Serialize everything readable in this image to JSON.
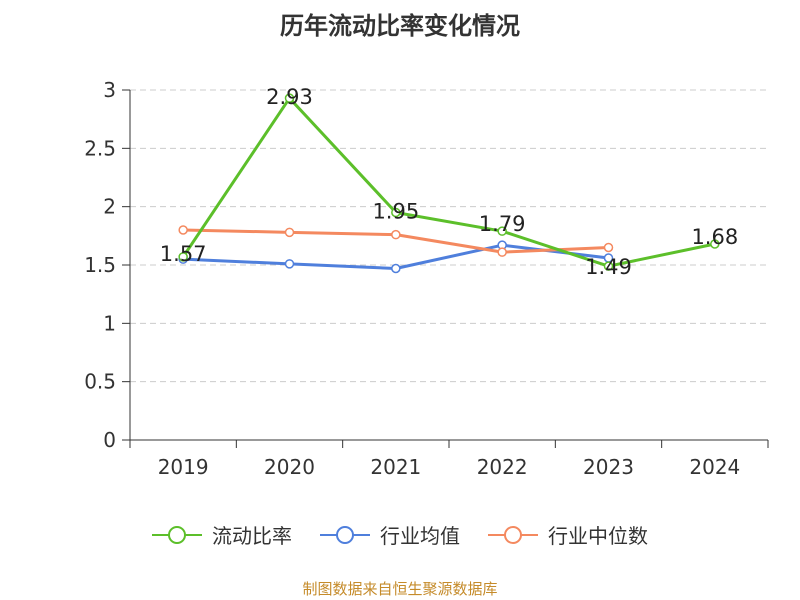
{
  "chart_data": {
    "type": "line",
    "title": "历年流动比率变化情况",
    "categories": [
      "2019",
      "2020",
      "2021",
      "2022",
      "2023",
      "2024"
    ],
    "ylim": [
      0,
      3
    ],
    "yticks": [
      "0",
      "0.5",
      "1",
      "1.5",
      "2",
      "2.5",
      "3"
    ],
    "grid": true,
    "legend_position": "bottom",
    "series": [
      {
        "name": "流动比率",
        "color": "#5cbf2a",
        "values": [
          1.57,
          2.93,
          1.95,
          1.79,
          1.49,
          1.68
        ],
        "labels": [
          "1.57",
          "2.93",
          "1.95",
          "1.79",
          "1.49",
          "1.68"
        ]
      },
      {
        "name": "行业均值",
        "color": "#4f7fdc",
        "values": [
          1.55,
          1.51,
          1.47,
          1.67,
          1.56,
          null
        ]
      },
      {
        "name": "行业中位数",
        "color": "#f4895f",
        "values": [
          1.8,
          1.78,
          1.76,
          1.61,
          1.65,
          null
        ]
      }
    ],
    "source": "制图数据来自恒生聚源数据库"
  }
}
